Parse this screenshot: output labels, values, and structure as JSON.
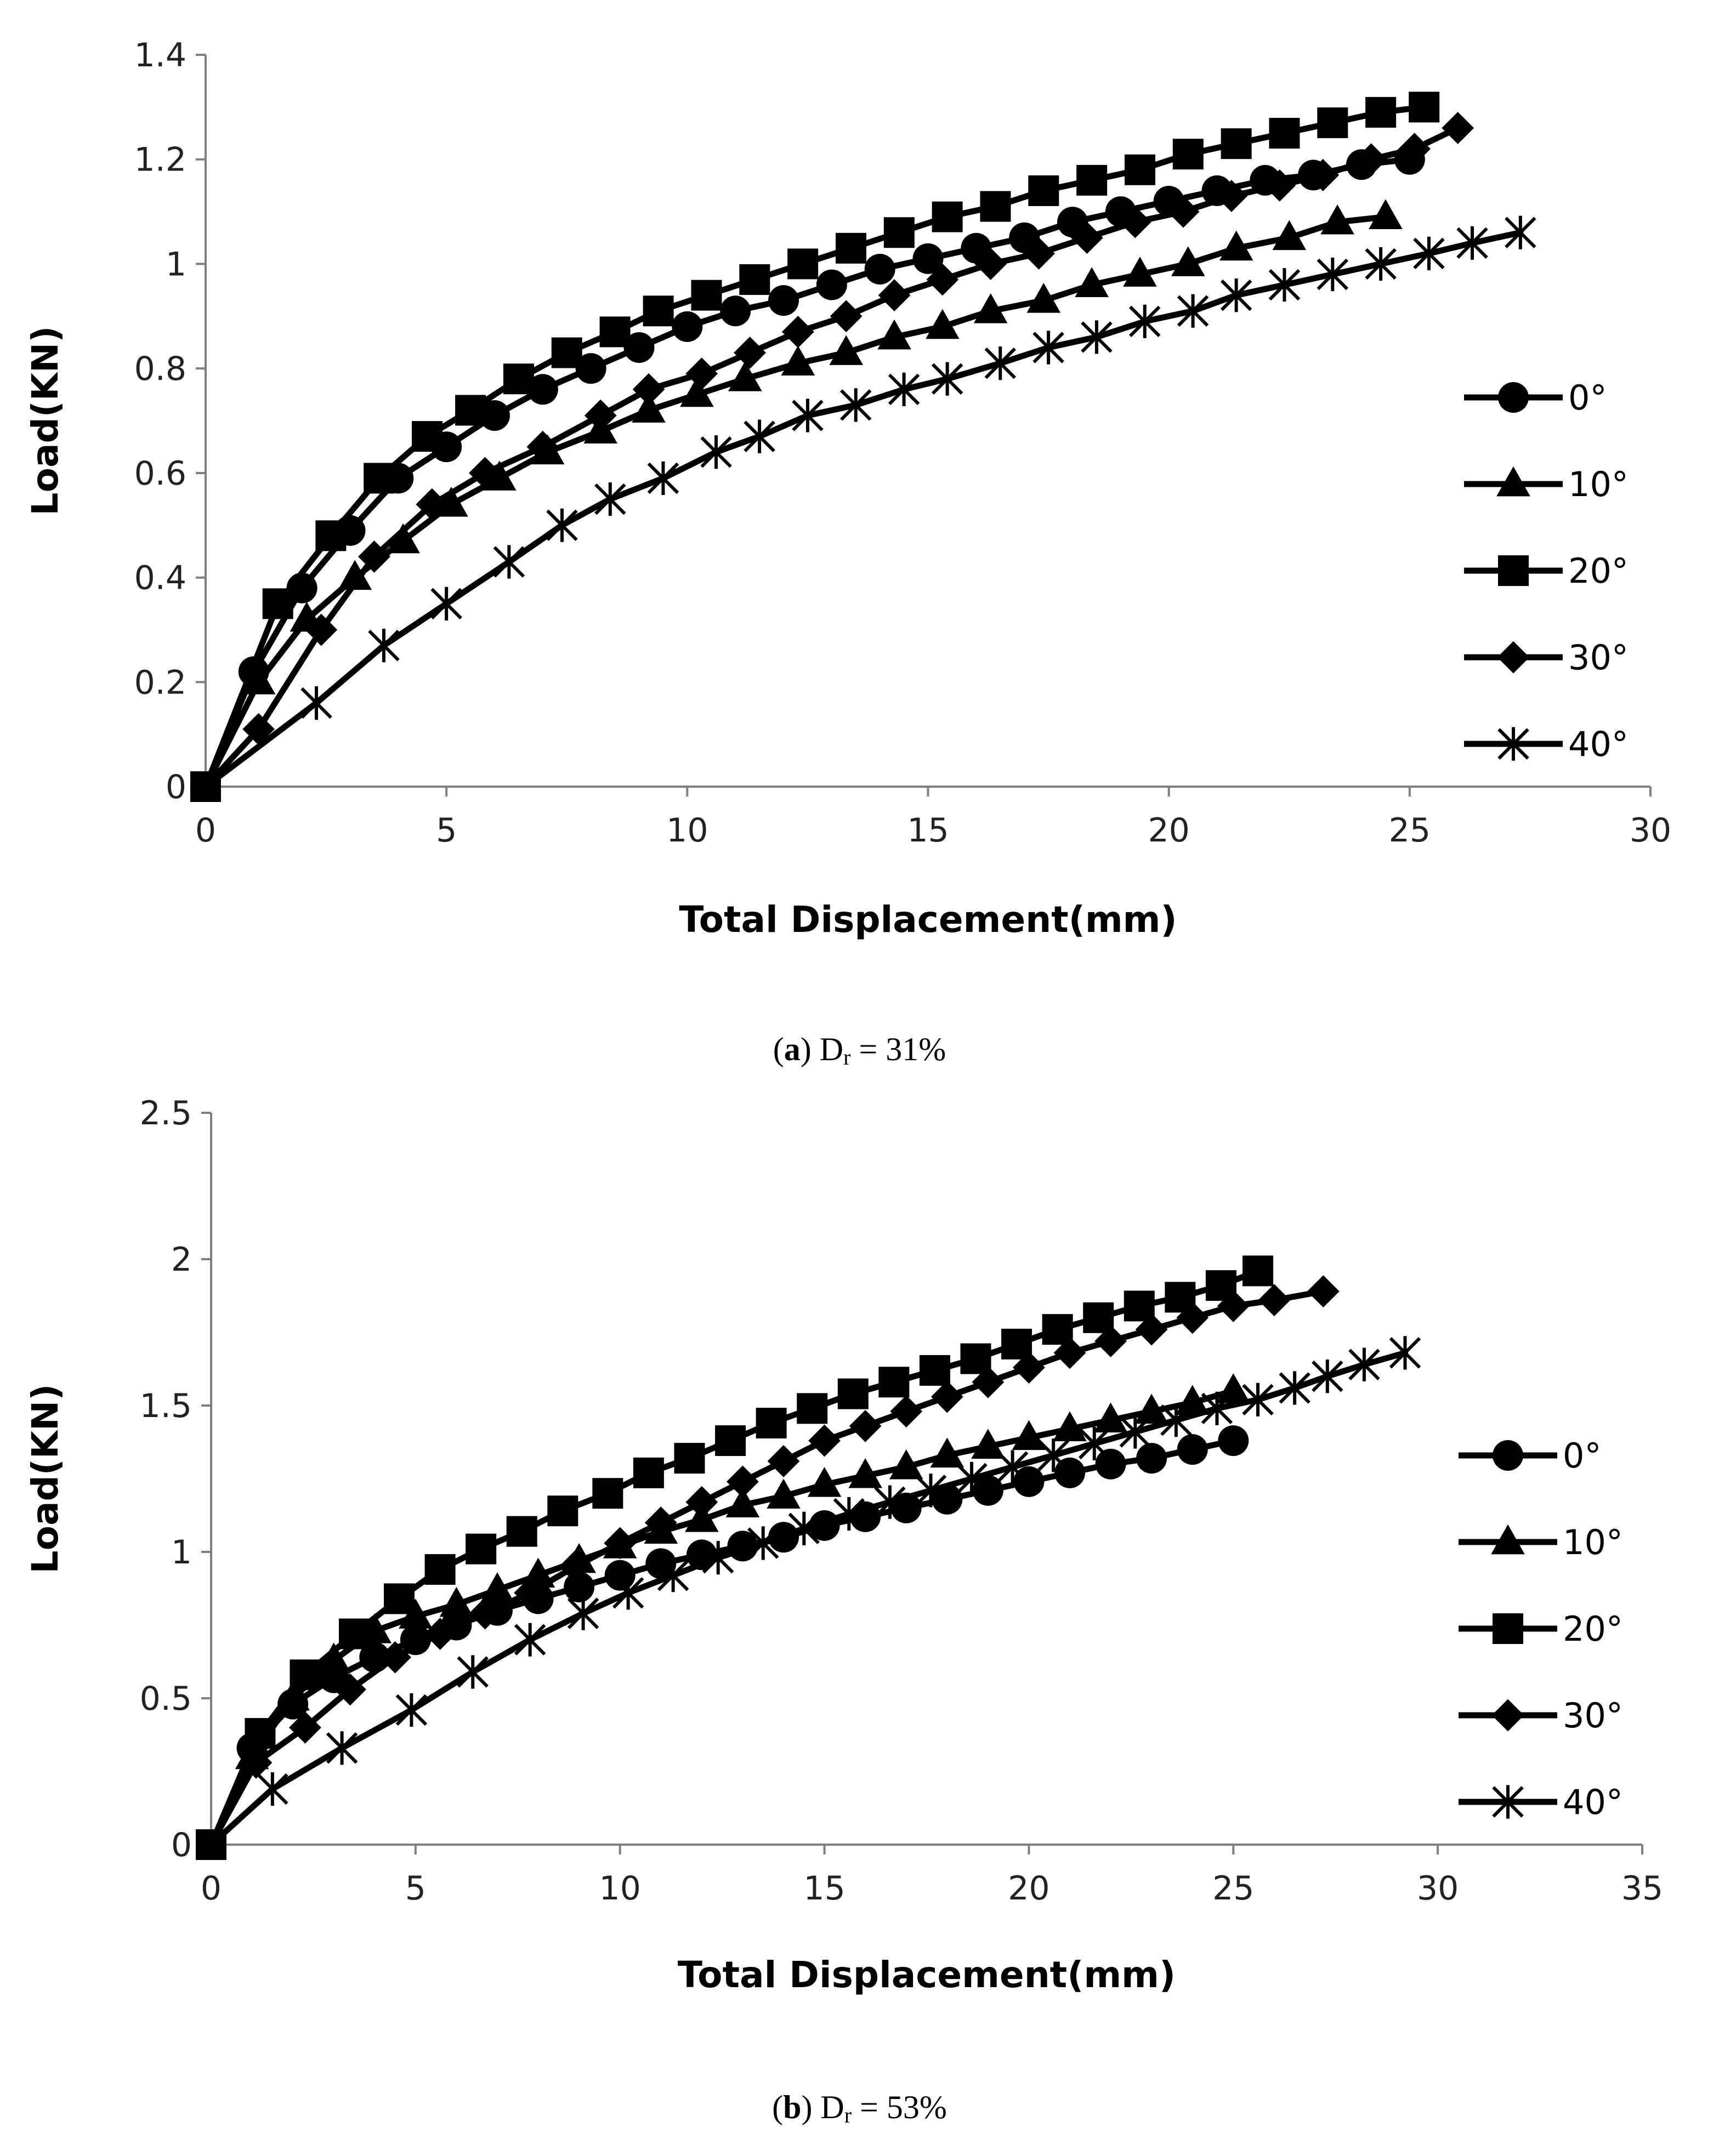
{
  "chart_data": [
    {
      "type": "line",
      "caption": {
        "letter": "a",
        "prefix": "(",
        "suffix": ")",
        "symbol": "D",
        "subscript": "r",
        "value_text": " = 31%"
      },
      "xlabel": "Total Displacement(mm)",
      "ylabel": "Load(KN)",
      "xlim": [
        0,
        30
      ],
      "ylim": [
        0,
        1.4
      ],
      "xticks": [
        0,
        5,
        10,
        15,
        20,
        25,
        30
      ],
      "yticks": [
        0,
        0.2,
        0.4,
        0.6,
        0.8,
        1,
        1.2,
        1.4
      ],
      "xtick_labels": [
        "0",
        "5",
        "10",
        "15",
        "20",
        "25",
        "30"
      ],
      "ytick_labels": [
        "0",
        "0.2",
        "0.4",
        "0.6",
        "0.8",
        "1",
        "1.2",
        "1.4"
      ],
      "grid": false,
      "legend_position": "right",
      "series": [
        {
          "name": "0°",
          "marker": "circle",
          "x": [
            0,
            1,
            2,
            3,
            4,
            5,
            6,
            7,
            8,
            9,
            10,
            11,
            12,
            13,
            14,
            15,
            16,
            17,
            18,
            19,
            20,
            21,
            22,
            23,
            24,
            25
          ],
          "y": [
            0,
            0.22,
            0.38,
            0.49,
            0.59,
            0.65,
            0.71,
            0.76,
            0.8,
            0.84,
            0.88,
            0.91,
            0.93,
            0.96,
            0.99,
            1.01,
            1.03,
            1.05,
            1.08,
            1.1,
            1.12,
            1.14,
            1.16,
            1.17,
            1.19,
            1.2
          ]
        },
        {
          "name": "10°",
          "marker": "triangle",
          "x": [
            0,
            1.1,
            2.1,
            3.1,
            4.1,
            5.1,
            6.1,
            7.1,
            8.2,
            9.2,
            10.2,
            11.2,
            12.3,
            13.3,
            14.3,
            15.3,
            16.3,
            17.4,
            18.4,
            19.4,
            20.4,
            21.4,
            22.5,
            23.5,
            24.5
          ],
          "y": [
            0,
            0.2,
            0.32,
            0.4,
            0.47,
            0.54,
            0.59,
            0.64,
            0.68,
            0.72,
            0.75,
            0.78,
            0.81,
            0.83,
            0.86,
            0.88,
            0.91,
            0.93,
            0.96,
            0.98,
            1,
            1.03,
            1.05,
            1.08,
            1.09
          ]
        },
        {
          "name": "20°",
          "marker": "square",
          "x": [
            0,
            1.5,
            2.6,
            3.6,
            4.6,
            5.5,
            6.5,
            7.5,
            8.5,
            9.4,
            10.4,
            11.4,
            12.4,
            13.4,
            14.4,
            15.4,
            16.4,
            17.4,
            18.4,
            19.4,
            20.4,
            21.4,
            22.4,
            23.4,
            24.4,
            25.3
          ],
          "y": [
            0,
            0.35,
            0.48,
            0.59,
            0.67,
            0.72,
            0.78,
            0.83,
            0.87,
            0.91,
            0.94,
            0.97,
            1,
            1.03,
            1.06,
            1.09,
            1.11,
            1.14,
            1.16,
            1.18,
            1.21,
            1.23,
            1.25,
            1.27,
            1.29,
            1.3
          ]
        },
        {
          "name": "30°",
          "marker": "diamond",
          "x": [
            0,
            1.1,
            2.4,
            3.5,
            4.7,
            5.8,
            7,
            8.2,
            9.2,
            10.3,
            11.3,
            12.3,
            13.3,
            14.3,
            15.3,
            16.3,
            17.3,
            18.3,
            19.3,
            20.3,
            21.3,
            22.3,
            23.2,
            24.2,
            25.1,
            26
          ],
          "y": [
            0,
            0.11,
            0.3,
            0.44,
            0.54,
            0.6,
            0.65,
            0.71,
            0.76,
            0.79,
            0.83,
            0.87,
            0.9,
            0.94,
            0.97,
            1,
            1.02,
            1.05,
            1.08,
            1.1,
            1.13,
            1.15,
            1.17,
            1.2,
            1.22,
            1.26
          ]
        },
        {
          "name": "40°",
          "marker": "asterisk",
          "x": [
            0,
            2.3,
            3.7,
            5,
            6.3,
            7.4,
            8.4,
            9.5,
            10.6,
            11.5,
            12.5,
            13.5,
            14.5,
            15.4,
            16.5,
            17.5,
            18.5,
            19.5,
            20.5,
            21.4,
            22.4,
            23.4,
            24.4,
            25.4,
            26.3,
            27.3
          ],
          "y": [
            0,
            0.16,
            0.27,
            0.35,
            0.43,
            0.5,
            0.55,
            0.59,
            0.64,
            0.67,
            0.71,
            0.73,
            0.76,
            0.78,
            0.81,
            0.84,
            0.86,
            0.89,
            0.91,
            0.94,
            0.96,
            0.98,
            1,
            1.02,
            1.04,
            1.06
          ]
        }
      ]
    },
    {
      "type": "line",
      "caption": {
        "letter": "b",
        "prefix": "(",
        "suffix": ")",
        "symbol": "D",
        "subscript": "r",
        "value_text": " = 53%"
      },
      "xlabel": "Total Displacement(mm)",
      "ylabel": "Load(KN)",
      "xlim": [
        0,
        35
      ],
      "ylim": [
        0,
        2.5
      ],
      "xticks": [
        0,
        5,
        10,
        15,
        20,
        25,
        30,
        35
      ],
      "yticks": [
        0,
        0.5,
        1,
        1.5,
        2,
        2.5
      ],
      "xtick_labels": [
        "0",
        "5",
        "10",
        "15",
        "20",
        "25",
        "30",
        "35"
      ],
      "ytick_labels": [
        "0",
        "0.5",
        "1",
        "1.5",
        "2",
        "2.5"
      ],
      "grid": false,
      "legend_position": "right",
      "series": [
        {
          "name": "0°",
          "marker": "circle",
          "x": [
            0,
            1,
            2,
            3,
            4,
            5,
            6,
            7,
            8,
            9,
            10,
            11,
            12,
            13,
            14,
            15,
            16,
            17,
            18,
            19,
            20,
            21,
            22,
            23,
            24,
            25
          ],
          "y": [
            0,
            0.33,
            0.48,
            0.57,
            0.64,
            0.7,
            0.75,
            0.8,
            0.84,
            0.88,
            0.92,
            0.96,
            0.99,
            1.02,
            1.05,
            1.09,
            1.12,
            1.15,
            1.18,
            1.21,
            1.24,
            1.27,
            1.3,
            1.32,
            1.35,
            1.38
          ]
        },
        {
          "name": "10°",
          "marker": "triangle",
          "x": [
            0,
            1,
            2,
            3,
            4,
            5,
            6,
            7,
            8,
            9,
            10,
            11,
            12,
            13,
            14,
            15,
            16,
            17,
            18,
            19,
            20,
            21,
            22,
            23,
            24,
            25
          ],
          "y": [
            0,
            0.3,
            0.5,
            0.63,
            0.73,
            0.78,
            0.82,
            0.87,
            0.92,
            0.97,
            1.02,
            1.07,
            1.11,
            1.16,
            1.19,
            1.23,
            1.26,
            1.29,
            1.33,
            1.36,
            1.39,
            1.42,
            1.45,
            1.48,
            1.51,
            1.55
          ]
        },
        {
          "name": "20°",
          "marker": "square",
          "x": [
            0,
            1.2,
            2.3,
            3.5,
            4.6,
            5.6,
            6.6,
            7.6,
            8.6,
            9.7,
            10.7,
            11.7,
            12.7,
            13.7,
            14.7,
            15.7,
            16.7,
            17.7,
            18.7,
            19.7,
            20.7,
            21.7,
            22.7,
            23.7,
            24.7,
            25.6
          ],
          "y": [
            0,
            0.38,
            0.58,
            0.72,
            0.84,
            0.94,
            1.01,
            1.07,
            1.14,
            1.2,
            1.27,
            1.32,
            1.38,
            1.44,
            1.49,
            1.54,
            1.58,
            1.62,
            1.66,
            1.71,
            1.76,
            1.8,
            1.84,
            1.87,
            1.91,
            1.96
          ]
        },
        {
          "name": "30°",
          "marker": "diamond",
          "x": [
            0,
            1.1,
            2.3,
            3.4,
            4.5,
            5.6,
            6.7,
            7.8,
            8.9,
            10,
            11,
            12,
            13,
            14,
            15,
            16,
            17,
            18,
            19,
            20,
            21,
            22,
            23,
            24,
            25,
            26,
            27.2
          ],
          "y": [
            0,
            0.28,
            0.4,
            0.53,
            0.64,
            0.72,
            0.79,
            0.86,
            0.95,
            1.03,
            1.1,
            1.17,
            1.24,
            1.31,
            1.38,
            1.43,
            1.48,
            1.53,
            1.58,
            1.63,
            1.68,
            1.72,
            1.76,
            1.8,
            1.84,
            1.86,
            1.89
          ]
        },
        {
          "name": "40°",
          "marker": "asterisk",
          "x": [
            0,
            1.5,
            3.2,
            4.9,
            6.4,
            7.8,
            9.1,
            10.2,
            11.3,
            12.4,
            13.5,
            14.5,
            15.6,
            16.6,
            17.6,
            18.6,
            19.6,
            20.6,
            21.6,
            22.6,
            23.6,
            24.6,
            25.6,
            26.5,
            27.3,
            28.2,
            29.2
          ],
          "y": [
            0,
            0.19,
            0.33,
            0.46,
            0.59,
            0.7,
            0.79,
            0.86,
            0.92,
            0.98,
            1.03,
            1.08,
            1.13,
            1.17,
            1.21,
            1.25,
            1.29,
            1.33,
            1.37,
            1.41,
            1.45,
            1.49,
            1.52,
            1.56,
            1.6,
            1.64,
            1.68
          ]
        }
      ]
    }
  ]
}
